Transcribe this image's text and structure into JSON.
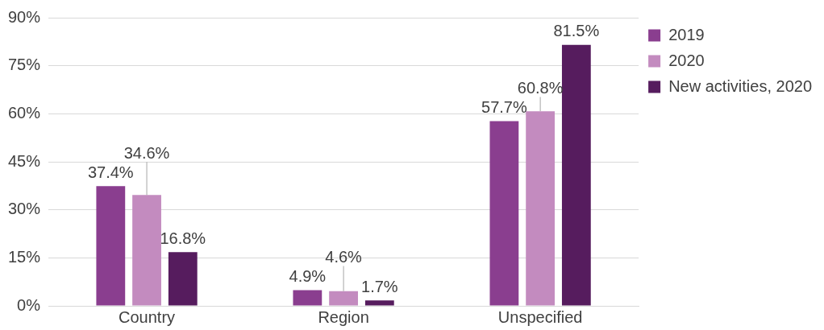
{
  "chart_data": {
    "type": "bar",
    "categories": [
      "Country",
      "Region",
      "Unspecified"
    ],
    "series": [
      {
        "name": "2019",
        "color": "#8a3e8f",
        "values": [
          37.4,
          4.9,
          57.7
        ],
        "value_labels": [
          "37.4%",
          "4.9%",
          "57.7%"
        ]
      },
      {
        "name": "2020",
        "color": "#c38bbf",
        "values": [
          34.6,
          4.6,
          60.8
        ],
        "value_labels": [
          "34.6%",
          "4.6%",
          "60.8%"
        ]
      },
      {
        "name": "New activities, 2020",
        "color": "#561c5e",
        "values": [
          16.8,
          1.7,
          81.5
        ],
        "value_labels": [
          "16.8%",
          "1.7%",
          "81.5%"
        ]
      }
    ],
    "ylim": [
      0,
      90
    ],
    "yticks": [
      {
        "value": 0,
        "label": "0%"
      },
      {
        "value": 15,
        "label": "15%"
      },
      {
        "value": 30,
        "label": "30%"
      },
      {
        "value": 45,
        "label": "45%"
      },
      {
        "value": 60,
        "label": "60%"
      },
      {
        "value": 75,
        "label": "75%"
      },
      {
        "value": 90,
        "label": "90%"
      }
    ],
    "grid": "y",
    "legend": "top right"
  }
}
